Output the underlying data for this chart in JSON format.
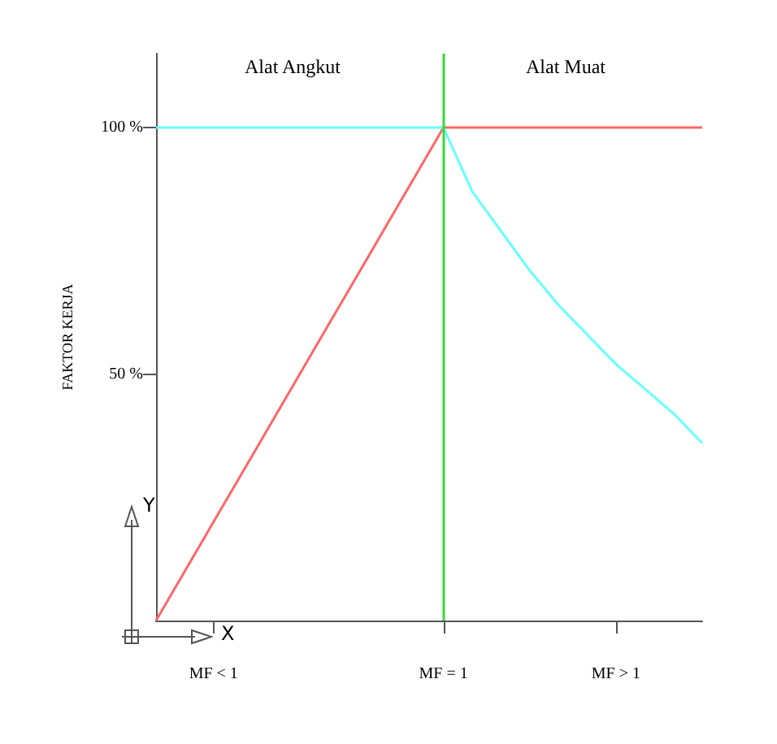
{
  "chart_data": {
    "type": "line",
    "ylabel": "FAKTOR KERJA",
    "categories": [
      null,
      null,
      "MF < 1",
      null,
      null,
      null,
      null,
      null,
      null,
      null,
      "MF = 1",
      null,
      null,
      null,
      null,
      null,
      "MF > 1",
      null,
      null,
      null
    ],
    "ylim": [
      0,
      115
    ],
    "yticks": [
      {
        "value": 50,
        "label": "50 %"
      },
      {
        "value": 100,
        "label": "100 %"
      }
    ],
    "series": [
      {
        "color": "#ff6666",
        "values": [
          0,
          10,
          20,
          30,
          40,
          50,
          60,
          70,
          80,
          90,
          100,
          100,
          100,
          100,
          100,
          100,
          100,
          100,
          100,
          100
        ]
      },
      {
        "color": "#66ffff",
        "values": [
          100,
          100,
          100,
          100,
          100,
          100,
          100,
          100,
          100,
          100,
          100,
          87,
          79,
          71,
          64,
          58,
          52,
          47,
          42,
          36
        ]
      }
    ],
    "ref_lines": [
      {
        "axis": "x",
        "value": "MF = 1",
        "color": "#33dd33"
      }
    ],
    "annotations": [
      "Alat Angkut",
      "Alat Muat",
      "Y",
      "X"
    ],
    "grid": false,
    "marker": "none",
    "line_style": "solid"
  }
}
